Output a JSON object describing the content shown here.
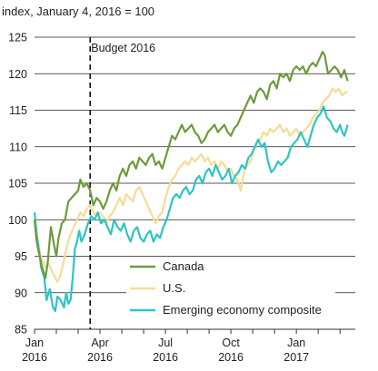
{
  "chart_data": {
    "type": "line",
    "title": "",
    "ylabel": "index, January 4, 2016 = 100",
    "xlabel": "",
    "ylim": [
      85,
      125
    ],
    "yticks": [
      85,
      90,
      95,
      100,
      105,
      110,
      115,
      120,
      125
    ],
    "grid": true,
    "legend_position": "bottom-center",
    "x_ticks": [
      {
        "month": 0,
        "line1": "Jan",
        "line2": "2016"
      },
      {
        "month": 3,
        "line1": "Apr",
        "line2": "2016"
      },
      {
        "month": 6,
        "line1": "Jul",
        "line2": "2016"
      },
      {
        "month": 9,
        "line1": "Oct",
        "line2": "2016"
      },
      {
        "month": 12,
        "line1": "Jan",
        "line2": "2017"
      }
    ],
    "x_range_months": [
      0,
      14.7
    ],
    "annotations": [
      {
        "label": "Budget 2016",
        "month": 2.55,
        "style": "dashed-vertical"
      }
    ],
    "series": [
      {
        "name": "Canada",
        "color": "#6e9a3c",
        "points": [
          [
            0,
            100
          ],
          [
            0.1,
            97
          ],
          [
            0.2,
            95.5
          ],
          [
            0.35,
            93.5
          ],
          [
            0.5,
            92
          ],
          [
            0.6,
            94
          ],
          [
            0.75,
            99
          ],
          [
            0.9,
            96.5
          ],
          [
            1.0,
            95
          ],
          [
            1.1,
            97.5
          ],
          [
            1.25,
            99.5
          ],
          [
            1.4,
            100
          ],
          [
            1.55,
            102.5
          ],
          [
            1.7,
            103
          ],
          [
            1.85,
            103.5
          ],
          [
            2.0,
            104
          ],
          [
            2.1,
            105.5
          ],
          [
            2.25,
            104.5
          ],
          [
            2.4,
            105
          ],
          [
            2.55,
            104
          ],
          [
            2.7,
            102
          ],
          [
            2.85,
            103
          ],
          [
            3.0,
            102.5
          ],
          [
            3.15,
            101.5
          ],
          [
            3.3,
            102.5
          ],
          [
            3.45,
            104
          ],
          [
            3.6,
            105
          ],
          [
            3.75,
            104
          ],
          [
            3.9,
            106
          ],
          [
            4.05,
            107
          ],
          [
            4.2,
            106
          ],
          [
            4.35,
            107.5
          ],
          [
            4.5,
            108
          ],
          [
            4.65,
            107
          ],
          [
            4.8,
            108.5
          ],
          [
            4.95,
            108
          ],
          [
            5.1,
            107.5
          ],
          [
            5.25,
            108.5
          ],
          [
            5.4,
            109
          ],
          [
            5.55,
            107.5
          ],
          [
            5.7,
            108
          ],
          [
            5.85,
            107
          ],
          [
            6.0,
            108.5
          ],
          [
            6.15,
            110
          ],
          [
            6.3,
            111.5
          ],
          [
            6.45,
            111
          ],
          [
            6.6,
            112
          ],
          [
            6.75,
            113
          ],
          [
            6.9,
            112
          ],
          [
            7.05,
            112.5
          ],
          [
            7.2,
            113
          ],
          [
            7.35,
            112
          ],
          [
            7.5,
            111.5
          ],
          [
            7.65,
            110.5
          ],
          [
            7.8,
            111
          ],
          [
            7.95,
            112
          ],
          [
            8.1,
            112.5
          ],
          [
            8.25,
            113
          ],
          [
            8.4,
            112
          ],
          [
            8.55,
            112.5
          ],
          [
            8.7,
            113
          ],
          [
            8.85,
            112
          ],
          [
            9.0,
            111.5
          ],
          [
            9.15,
            112.5
          ],
          [
            9.3,
            113
          ],
          [
            9.45,
            114
          ],
          [
            9.6,
            115
          ],
          [
            9.75,
            116
          ],
          [
            9.9,
            117
          ],
          [
            10.05,
            116
          ],
          [
            10.2,
            117.5
          ],
          [
            10.35,
            118
          ],
          [
            10.5,
            117.5
          ],
          [
            10.65,
            116.5
          ],
          [
            10.8,
            118.5
          ],
          [
            10.95,
            119
          ],
          [
            11.1,
            118
          ],
          [
            11.25,
            120
          ],
          [
            11.4,
            119.5
          ],
          [
            11.55,
            120
          ],
          [
            11.7,
            119
          ],
          [
            11.85,
            120.5
          ],
          [
            12.0,
            121
          ],
          [
            12.15,
            120.5
          ],
          [
            12.3,
            121
          ],
          [
            12.45,
            120
          ],
          [
            12.6,
            121
          ],
          [
            12.75,
            121.5
          ],
          [
            12.9,
            121
          ],
          [
            13.05,
            122
          ],
          [
            13.2,
            123
          ],
          [
            13.3,
            122.5
          ],
          [
            13.45,
            120
          ],
          [
            13.6,
            120.5
          ],
          [
            13.75,
            121
          ],
          [
            13.9,
            120.5
          ],
          [
            14.05,
            119.5
          ],
          [
            14.2,
            120.5
          ],
          [
            14.35,
            119
          ]
        ]
      },
      {
        "name": "U.S.",
        "color": "#f5dc96",
        "points": [
          [
            0,
            100
          ],
          [
            0.1,
            97.5
          ],
          [
            0.2,
            96
          ],
          [
            0.35,
            94.5
          ],
          [
            0.5,
            93.5
          ],
          [
            0.65,
            94
          ],
          [
            0.8,
            93
          ],
          [
            0.95,
            92
          ],
          [
            1.05,
            91.5
          ],
          [
            1.2,
            92.5
          ],
          [
            1.35,
            94.5
          ],
          [
            1.5,
            96.5
          ],
          [
            1.65,
            98
          ],
          [
            1.8,
            99
          ],
          [
            1.95,
            100
          ],
          [
            2.1,
            101
          ],
          [
            2.25,
            100.5
          ],
          [
            2.4,
            101.5
          ],
          [
            2.55,
            102
          ],
          [
            2.7,
            101
          ],
          [
            2.85,
            100.5
          ],
          [
            3.0,
            101
          ],
          [
            3.15,
            100.5
          ],
          [
            3.3,
            99.5
          ],
          [
            3.45,
            100.5
          ],
          [
            3.6,
            101
          ],
          [
            3.75,
            102
          ],
          [
            3.9,
            103
          ],
          [
            4.05,
            102
          ],
          [
            4.2,
            103.5
          ],
          [
            4.35,
            103
          ],
          [
            4.5,
            102.5
          ],
          [
            4.65,
            104
          ],
          [
            4.8,
            104.5
          ],
          [
            4.95,
            103.5
          ],
          [
            5.1,
            102.5
          ],
          [
            5.25,
            101.5
          ],
          [
            5.4,
            100.5
          ],
          [
            5.55,
            99.5
          ],
          [
            5.7,
            100.5
          ],
          [
            5.85,
            101
          ],
          [
            6.0,
            103
          ],
          [
            6.15,
            104.5
          ],
          [
            6.3,
            105.5
          ],
          [
            6.45,
            106
          ],
          [
            6.6,
            107
          ],
          [
            6.75,
            107.5
          ],
          [
            6.9,
            108
          ],
          [
            7.05,
            107.5
          ],
          [
            7.2,
            108.5
          ],
          [
            7.35,
            108
          ],
          [
            7.5,
            108.5
          ],
          [
            7.65,
            109
          ],
          [
            7.8,
            108
          ],
          [
            7.95,
            108.5
          ],
          [
            8.1,
            107.5
          ],
          [
            8.25,
            108
          ],
          [
            8.4,
            107
          ],
          [
            8.55,
            108
          ],
          [
            8.7,
            107.5
          ],
          [
            8.85,
            106.5
          ],
          [
            9.0,
            107
          ],
          [
            9.15,
            106
          ],
          [
            9.3,
            105.5
          ],
          [
            9.45,
            104
          ],
          [
            9.6,
            106.5
          ],
          [
            9.75,
            107.5
          ],
          [
            9.9,
            108
          ],
          [
            10.05,
            109.5
          ],
          [
            10.2,
            110.5
          ],
          [
            10.35,
            111
          ],
          [
            10.5,
            112
          ],
          [
            10.65,
            111.5
          ],
          [
            10.8,
            112.5
          ],
          [
            10.95,
            112
          ],
          [
            11.1,
            112.5
          ],
          [
            11.25,
            113
          ],
          [
            11.4,
            112
          ],
          [
            11.55,
            112.5
          ],
          [
            11.7,
            111.5
          ],
          [
            11.85,
            112
          ],
          [
            12.0,
            112.5
          ],
          [
            12.15,
            111.5
          ],
          [
            12.3,
            112
          ],
          [
            12.45,
            112.5
          ],
          [
            12.6,
            113
          ],
          [
            12.75,
            114
          ],
          [
            12.9,
            114.5
          ],
          [
            13.05,
            115
          ],
          [
            13.2,
            116
          ],
          [
            13.35,
            116.5
          ],
          [
            13.5,
            117
          ],
          [
            13.65,
            118
          ],
          [
            13.8,
            117.5
          ],
          [
            13.95,
            118
          ],
          [
            14.1,
            117
          ],
          [
            14.25,
            117.5
          ],
          [
            14.35,
            117.5
          ]
        ]
      },
      {
        "name": "Emerging economy composite",
        "color": "#2ec4c4",
        "points": [
          [
            0,
            101
          ],
          [
            0.1,
            98
          ],
          [
            0.2,
            96
          ],
          [
            0.3,
            93.5
          ],
          [
            0.45,
            92
          ],
          [
            0.55,
            89
          ],
          [
            0.7,
            90.5
          ],
          [
            0.85,
            88
          ],
          [
            0.95,
            87.5
          ],
          [
            1.05,
            89.5
          ],
          [
            1.2,
            89
          ],
          [
            1.35,
            88
          ],
          [
            1.45,
            90
          ],
          [
            1.55,
            88.5
          ],
          [
            1.65,
            89
          ],
          [
            1.75,
            92
          ],
          [
            1.85,
            96
          ],
          [
            1.95,
            97
          ],
          [
            2.05,
            98.5
          ],
          [
            2.15,
            97
          ],
          [
            2.3,
            98
          ],
          [
            2.45,
            99.5
          ],
          [
            2.6,
            100.5
          ],
          [
            2.75,
            100
          ],
          [
            2.9,
            101
          ],
          [
            3.05,
            99.5
          ],
          [
            3.2,
            100
          ],
          [
            3.35,
            99
          ],
          [
            3.5,
            98
          ],
          [
            3.65,
            100
          ],
          [
            3.8,
            99
          ],
          [
            3.95,
            98.5
          ],
          [
            4.1,
            99.5
          ],
          [
            4.25,
            98
          ],
          [
            4.4,
            97
          ],
          [
            4.55,
            98.5
          ],
          [
            4.7,
            99
          ],
          [
            4.85,
            97.5
          ],
          [
            5.0,
            97
          ],
          [
            5.15,
            98
          ],
          [
            5.3,
            98.5
          ],
          [
            5.45,
            97
          ],
          [
            5.6,
            98
          ],
          [
            5.75,
            97.5
          ],
          [
            5.9,
            99
          ],
          [
            6.05,
            100
          ],
          [
            6.2,
            101.5
          ],
          [
            6.35,
            103
          ],
          [
            6.5,
            103.5
          ],
          [
            6.65,
            103
          ],
          [
            6.8,
            104
          ],
          [
            6.95,
            104.5
          ],
          [
            7.1,
            103.5
          ],
          [
            7.25,
            104
          ],
          [
            7.4,
            105.5
          ],
          [
            7.55,
            106
          ],
          [
            7.7,
            105
          ],
          [
            7.85,
            106.5
          ],
          [
            8.0,
            107
          ],
          [
            8.15,
            106
          ],
          [
            8.3,
            107.5
          ],
          [
            8.45,
            106.5
          ],
          [
            8.6,
            105.5
          ],
          [
            8.75,
            106
          ],
          [
            8.9,
            107
          ],
          [
            9.05,
            105
          ],
          [
            9.2,
            106
          ],
          [
            9.35,
            106.5
          ],
          [
            9.5,
            107.5
          ],
          [
            9.65,
            107
          ],
          [
            9.8,
            108.5
          ],
          [
            9.95,
            109
          ],
          [
            10.1,
            110
          ],
          [
            10.25,
            111
          ],
          [
            10.4,
            110
          ],
          [
            10.55,
            110.5
          ],
          [
            10.7,
            108
          ],
          [
            10.85,
            106.5
          ],
          [
            11.0,
            107
          ],
          [
            11.15,
            108
          ],
          [
            11.3,
            107.5
          ],
          [
            11.45,
            108
          ],
          [
            11.6,
            108.5
          ],
          [
            11.75,
            110
          ],
          [
            11.9,
            110.5
          ],
          [
            12.05,
            111
          ],
          [
            12.2,
            112
          ],
          [
            12.35,
            111
          ],
          [
            12.5,
            110
          ],
          [
            12.65,
            111.5
          ],
          [
            12.8,
            113
          ],
          [
            12.95,
            114
          ],
          [
            13.1,
            114.5
          ],
          [
            13.25,
            115.5
          ],
          [
            13.4,
            114
          ],
          [
            13.55,
            113.5
          ],
          [
            13.7,
            112.5
          ],
          [
            13.85,
            112
          ],
          [
            14.0,
            113
          ],
          [
            14.1,
            112
          ],
          [
            14.2,
            111.5
          ],
          [
            14.35,
            113
          ]
        ]
      }
    ]
  }
}
